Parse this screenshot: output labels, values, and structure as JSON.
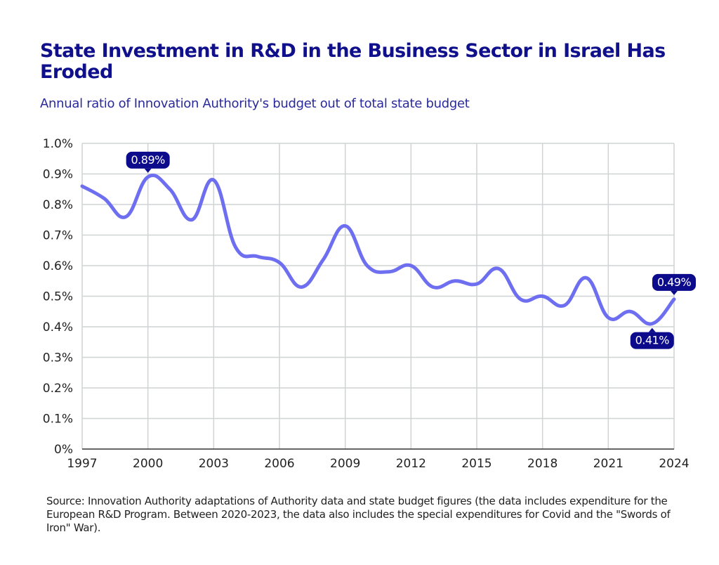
{
  "header": {
    "title": "State Investment in R&D in the Business Sector in Israel Has Eroded",
    "subtitle": "Annual ratio of Innovation Authority's budget out of total state budget"
  },
  "footer": {
    "source": "Source: Innovation Authority adaptations of Authority data and state budget figures (the data includes expenditure for the European R&D Program. Between 2020-2023, the data also includes the special expenditures for Covid and the \"Swords of Iron\" War)."
  },
  "colors": {
    "title": "#10108c",
    "line": "#6e6ef0",
    "label_bg": "#0b0b8c",
    "grid": "#cfd3d3",
    "axis": "#333333"
  },
  "chart_data": {
    "type": "line",
    "title": "State Investment in R&D in the Business Sector in Israel Has Eroded",
    "subtitle": "Annual ratio of Innovation Authority's budget out of total state budget",
    "xlabel": "",
    "ylabel": "",
    "x": [
      1997,
      1998,
      1999,
      2000,
      2001,
      2002,
      2003,
      2004,
      2005,
      2006,
      2007,
      2008,
      2009,
      2010,
      2011,
      2012,
      2013,
      2014,
      2015,
      2016,
      2017,
      2018,
      2019,
      2020,
      2021,
      2022,
      2023,
      2024
    ],
    "series": [
      {
        "name": "Innovation Authority budget / total state budget (%)",
        "values": [
          0.86,
          0.82,
          0.76,
          0.89,
          0.85,
          0.75,
          0.88,
          0.66,
          0.63,
          0.61,
          0.53,
          0.62,
          0.73,
          0.6,
          0.58,
          0.6,
          0.53,
          0.55,
          0.54,
          0.59,
          0.49,
          0.5,
          0.47,
          0.56,
          0.43,
          0.45,
          0.41,
          0.49
        ]
      }
    ],
    "xticks": [
      1997,
      2000,
      2003,
      2006,
      2009,
      2012,
      2015,
      2018,
      2021,
      2024
    ],
    "xtick_labels": [
      "1997",
      "2000",
      "2003",
      "2006",
      "2009",
      "2012",
      "2015",
      "2018",
      "2021",
      "2024"
    ],
    "yticks": [
      0,
      0.1,
      0.2,
      0.3,
      0.4,
      0.5,
      0.6,
      0.7,
      0.8,
      0.9,
      1.0
    ],
    "ytick_labels": [
      "0%",
      "0.1%",
      "0.2%",
      "0.3%",
      "0.4%",
      "0.5%",
      "0.6%",
      "0.7%",
      "0.8%",
      "0.9%",
      "1.0%"
    ],
    "xlim": [
      1997,
      2024
    ],
    "ylim": [
      0,
      1.0
    ],
    "grid": true,
    "annotations": [
      {
        "x": 2000,
        "y": 0.89,
        "text": "0.89%",
        "position": "above"
      },
      {
        "x": 2023,
        "y": 0.41,
        "text": "0.41%",
        "position": "below"
      },
      {
        "x": 2024,
        "y": 0.49,
        "text": "0.49%",
        "position": "above"
      }
    ]
  }
}
